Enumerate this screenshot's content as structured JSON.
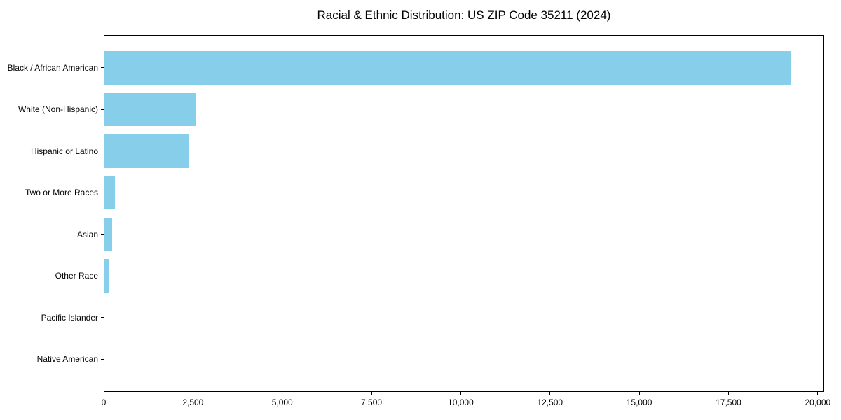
{
  "chart_data": {
    "type": "bar",
    "orientation": "horizontal",
    "title": "Racial & Ethnic Distribution: US ZIP Code 35211 (2024)",
    "categories": [
      "Black / African American",
      "White (Non-Hispanic)",
      "Hispanic or Latino",
      "Two or More Races",
      "Asian",
      "Other Race",
      "Pacific Islander",
      "Native American"
    ],
    "values": [
      19250,
      2590,
      2390,
      320,
      245,
      155,
      0,
      0
    ],
    "bar_color": "#87CEEB",
    "xlabel": "",
    "ylabel": "",
    "xlim": [
      0,
      20180
    ],
    "x_ticks": [
      0,
      2500,
      5000,
      7500,
      10000,
      12500,
      15000,
      17500,
      20000
    ],
    "x_tick_labels": [
      "0",
      "2,500",
      "5,000",
      "7,500",
      "10,000",
      "12,500",
      "15,000",
      "17,500",
      "20,000"
    ],
    "grid": false,
    "legend_position": "none",
    "axis_color": "#000000",
    "text_color": "#000000"
  }
}
